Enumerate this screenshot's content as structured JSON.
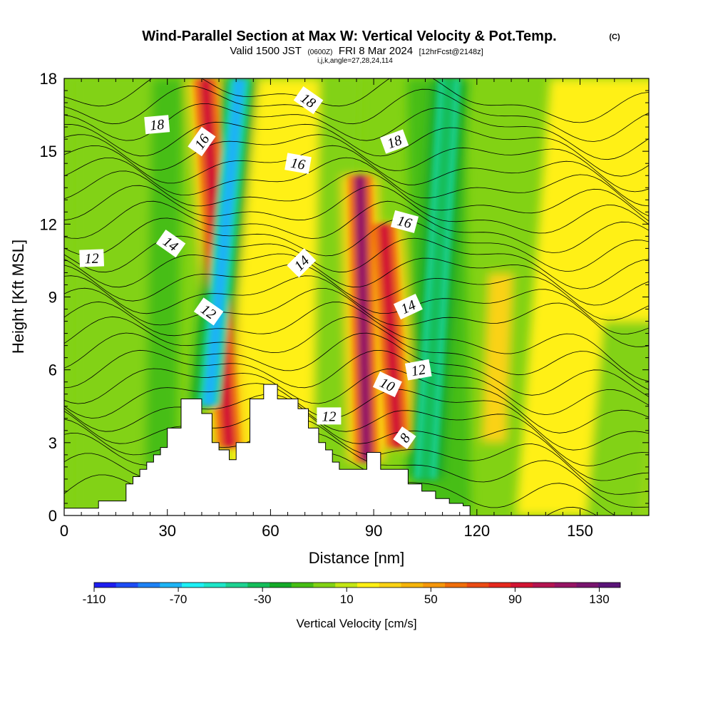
{
  "chart_data": {
    "type": "heatmap",
    "title": {
      "main": "Wind-Parallel Section at Max W: Vertical Velocity & Pot.Temp.",
      "copyright": "(C)",
      "valid_prefix": "Valid 1500 JST",
      "utc": "(0600Z)",
      "valid_date": "FRI 8 Mar 2024",
      "forecast": "[12hrFcst@2148z]",
      "indices": "i,j,k,angle=27,28,24,114"
    },
    "xlabel": "Distance [nm]",
    "ylabel": "Height [Kft MSL]",
    "xlim": [
      0,
      170
    ],
    "ylim": [
      0,
      18
    ],
    "x_ticks": [
      0,
      30,
      60,
      90,
      120,
      150
    ],
    "y_ticks": [
      0,
      3,
      6,
      9,
      12,
      15,
      18
    ],
    "colorbar": {
      "label": "Vertical Velocity [cm/s]",
      "tick_labels": [
        "-110",
        "-70",
        "-30",
        "10",
        "50",
        "90",
        "130"
      ],
      "tick_values": [
        -110,
        -70,
        -30,
        10,
        50,
        90,
        130
      ],
      "range": [
        -110,
        140
      ],
      "colors": [
        "#1e1ef0",
        "#1e4cf5",
        "#1e82f5",
        "#1eb4f5",
        "#1ef0f5",
        "#1ee6c8",
        "#1ed291",
        "#14be5a",
        "#14aa28",
        "#46be14",
        "#82d214",
        "#c3e614",
        "#fff014",
        "#fad214",
        "#f5b40a",
        "#f5960a",
        "#f06e0a",
        "#eb4b14",
        "#e6281e",
        "#d21432",
        "#b41450",
        "#961464",
        "#78146e",
        "#5a1478"
      ]
    },
    "contour_field": "Potential temperature (C)",
    "contour_labels": [
      {
        "text": "18",
        "x": 27,
        "y": 16.1
      },
      {
        "text": "16",
        "x": 40,
        "y": 15.4
      },
      {
        "text": "18",
        "x": 71,
        "y": 17.1
      },
      {
        "text": "16",
        "x": 68,
        "y": 14.5
      },
      {
        "text": "18",
        "x": 96,
        "y": 15.4
      },
      {
        "text": "16",
        "x": 99,
        "y": 12.1
      },
      {
        "text": "12",
        "x": 8,
        "y": 10.6
      },
      {
        "text": "14",
        "x": 31,
        "y": 11.2
      },
      {
        "text": "14",
        "x": 69,
        "y": 10.4
      },
      {
        "text": "12",
        "x": 42,
        "y": 8.4
      },
      {
        "text": "14",
        "x": 100,
        "y": 8.6
      },
      {
        "text": "12",
        "x": 103,
        "y": 6.0
      },
      {
        "text": "10",
        "x": 94,
        "y": 5.4
      },
      {
        "text": "12",
        "x": 77,
        "y": 4.1
      },
      {
        "text": "8",
        "x": 99,
        "y": 3.2
      }
    ],
    "terrain_profile": {
      "x": [
        0,
        10,
        10,
        18,
        18,
        20,
        20,
        22,
        22,
        24,
        24,
        26,
        26,
        28,
        28,
        30,
        30,
        34,
        34,
        40,
        40,
        43,
        43,
        45,
        45,
        48,
        48,
        50,
        50,
        54,
        54,
        58,
        58,
        62,
        62,
        68,
        68,
        71,
        71,
        74,
        74,
        76,
        76,
        78,
        78,
        80,
        80,
        88,
        88,
        92,
        92,
        100,
        100,
        104,
        104,
        108,
        108,
        112,
        112,
        116,
        116,
        118,
        118,
        120
      ],
      "y": [
        0.3,
        0.3,
        0.6,
        0.6,
        1.3,
        1.3,
        1.6,
        1.6,
        1.9,
        1.9,
        2.2,
        2.2,
        2.5,
        2.5,
        2.8,
        2.8,
        3.6,
        3.6,
        4.8,
        4.8,
        4.2,
        4.2,
        3.0,
        3.0,
        2.7,
        2.7,
        2.3,
        2.3,
        3.0,
        3.0,
        4.8,
        4.8,
        5.4,
        5.4,
        4.8,
        4.8,
        4.4,
        4.4,
        3.6,
        3.6,
        3.0,
        3.0,
        2.7,
        2.7,
        2.2,
        2.2,
        1.9,
        1.9,
        2.6,
        2.6,
        1.9,
        1.9,
        1.3,
        1.3,
        1.0,
        1.0,
        0.7,
        0.7,
        0.5,
        0.5,
        0.4,
        0.4,
        0.0,
        0.0
      ]
    },
    "velocity_features": [
      {
        "name": "updraft-band-1",
        "sign": "positive",
        "peak_cm_s": 90,
        "x_bottom": 48,
        "x_top": 41,
        "y_bottom": 2.8,
        "y_top": 18
      },
      {
        "name": "downdraft-band-1",
        "sign": "negative",
        "peak_cm_s": -70,
        "x_bottom": 42,
        "x_top": 51,
        "y_bottom": 4.5,
        "y_top": 18
      },
      {
        "name": "updraft-band-2",
        "sign": "positive",
        "peak_cm_s": 110,
        "x_bottom": 88,
        "x_top": 86,
        "y_bottom": 2.2,
        "y_top": 14
      },
      {
        "name": "updraft-band-3",
        "sign": "positive",
        "peak_cm_s": 90,
        "x_bottom": 97,
        "x_top": 93,
        "y_bottom": 2.8,
        "y_top": 12
      },
      {
        "name": "downdraft-band-2",
        "sign": "negative",
        "peak_cm_s": -30,
        "x_bottom": 105,
        "x_top": 112,
        "y_bottom": 1.5,
        "y_top": 18
      }
    ]
  }
}
